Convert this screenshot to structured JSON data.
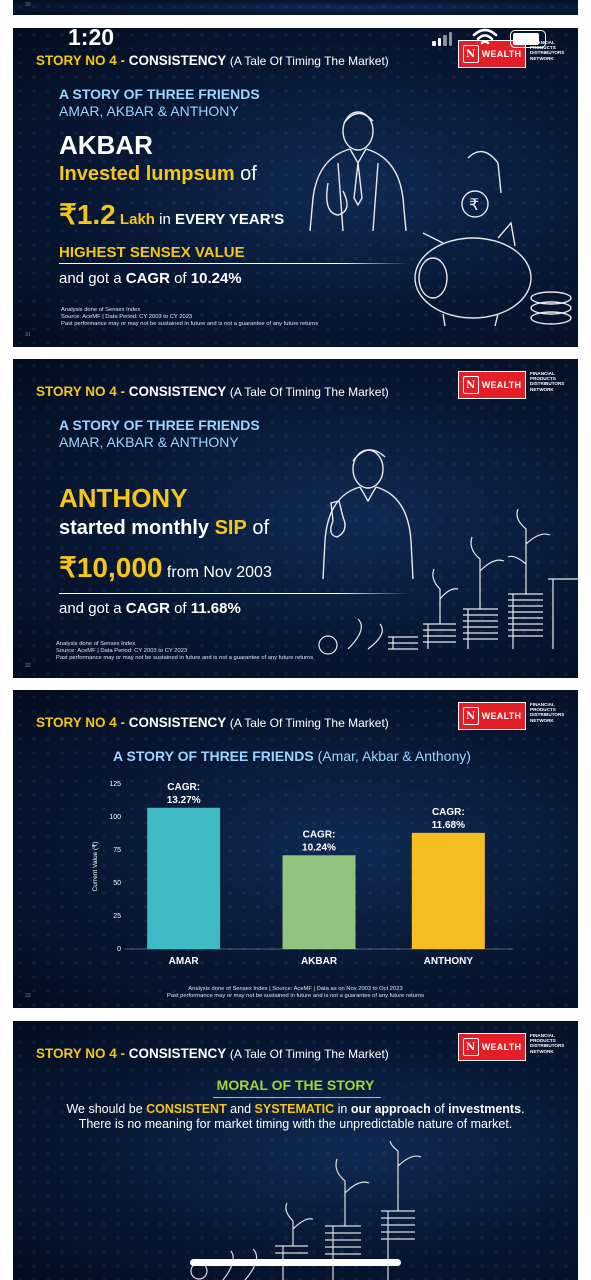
{
  "status_bar": {
    "time": "1:20"
  },
  "header": {
    "story_label": "STORY NO 4 - ",
    "story_topic": "CONSISTENCY",
    "story_sub": "(A Tale Of Timing The Market)",
    "logo_text": "WEALTH",
    "logo_mark": "N",
    "logo_sub": "FINANCIAL PRODUCTS DISTRIBUTORS NETWORK"
  },
  "intro": {
    "title": "A STORY OF THREE FRIENDS",
    "names": "AMAR, AKBAR & ANTHONY"
  },
  "slide_akbar": {
    "number": "31",
    "name": "AKBAR",
    "line1_a": "Invested lumpsum",
    "line1_b": " of",
    "currency": "₹",
    "amount": "1.2",
    "line2_a": " Lakh",
    "line2_b": " in ",
    "line2_c": "EVERY YEAR'S",
    "line3": "HIGHEST SENSEX VALUE",
    "line4_a": "and got a ",
    "line4_b": "CAGR",
    "line4_c": " of ",
    "line4_d": "10.24%",
    "note1": "Analysis done of Sensex Index",
    "note2": "Source: AceMF | Data Period: CY 2003 to CY 2023",
    "note3": "Past performance may or may not be sustained in future and is not a guarantee of any future returns"
  },
  "slide_anthony": {
    "number": "32",
    "name": "ANTHONY",
    "line1_a": "started monthly ",
    "line1_b": "SIP",
    "line1_c": " of",
    "currency": "₹",
    "amount": "10,000",
    "line2": " from Nov 2003",
    "line3_a": "and got a ",
    "line3_b": "CAGR",
    "line3_c": " of ",
    "line3_d": "11.68%",
    "note1": "Analysis done of Sensex Index",
    "note2": "Source: AceMF | Data Period: CY 2003 to CY 2023",
    "note3": "Past performance may or may not be sustained in future and is not a guarantee of any future returns"
  },
  "slide_chart": {
    "number": "33",
    "title_a": "A STORY OF THREE FRIENDS",
    "title_b": " (Amar, Akbar & Anthony)",
    "note1": "Analysis done of Sensex Index | Source: AceMF | Data as on Nov 2003 to Oct 2023",
    "note2": "Past performance may or may not be sustained in future and is not a guarantee of any future returns"
  },
  "chart_data": {
    "type": "bar",
    "categories": [
      "AMAR",
      "AKBAR",
      "ANTHONY"
    ],
    "values": [
      107,
      71,
      88
    ],
    "data_labels": [
      "CAGR:\n13.27%",
      "CAGR:\n10.24%",
      "CAGR:\n11.68%"
    ],
    "colors": [
      "#3fbac4",
      "#93c47d",
      "#f5bd1f"
    ],
    "title": "A STORY OF THREE FRIENDS (Amar, Akbar & Anthony)",
    "xlabel": "",
    "ylabel": "Current Value (₹)",
    "ylim": [
      0,
      125
    ],
    "yticks": [
      0,
      25,
      50,
      75,
      100,
      125
    ],
    "grid": false,
    "legend": "none"
  },
  "slide_moral": {
    "title": "MORAL OF THE STORY",
    "t1": "We should be ",
    "t2": "CONSISTENT",
    "t3": " and ",
    "t4": "SYSTEMATIC",
    "t5": " in ",
    "t6": "our approach",
    "t7": " of ",
    "t8": "investments",
    "t9": ".",
    "line2": "There is no meaning for market timing with the unpredictable nature of market."
  },
  "colors": {
    "accent_yellow": "#f5c518",
    "light_blue": "#9fd3ff",
    "logo_red": "#e41e26",
    "moral_green": "#a6d23a"
  }
}
